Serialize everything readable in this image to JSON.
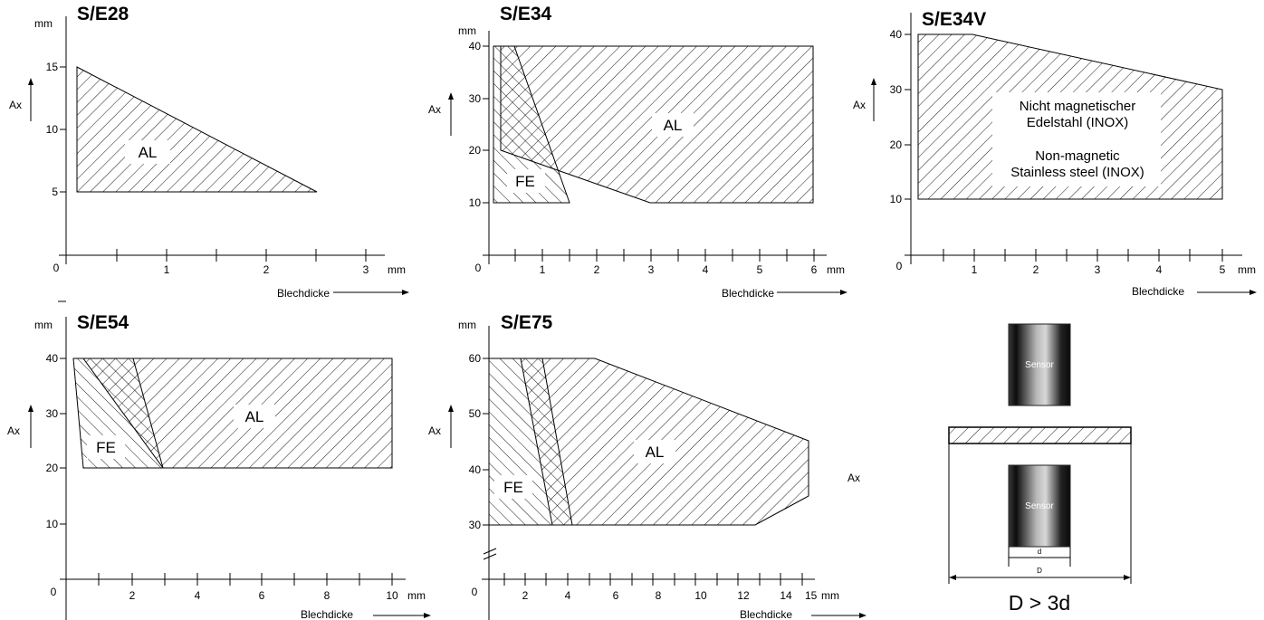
{
  "charts": [
    {
      "title": "S/E28",
      "y_unit": "mm",
      "y_label": "Ax",
      "x_unit": "mm",
      "x_label": "Blechdicke",
      "x_ticks": [
        "0",
        "1",
        "2",
        "3"
      ],
      "y_ticks": [
        "5",
        "10",
        "15"
      ],
      "regions": [
        {
          "label": "AL",
          "pattern": "forward-hatch",
          "points": [
            [
              0.1,
              15
            ],
            [
              0.1,
              5
            ],
            [
              2.5,
              5
            ]
          ]
        }
      ]
    },
    {
      "title": "S/E34",
      "y_unit": "mm",
      "y_label": "Ax",
      "x_unit": "mm",
      "x_label": "Blechdicke",
      "x_ticks": [
        "0",
        "1",
        "2",
        "3",
        "4",
        "5",
        "6"
      ],
      "y_ticks": [
        "10",
        "20",
        "30",
        "40"
      ],
      "regions": [
        {
          "label": "AL",
          "pattern": "forward-hatch",
          "points": [
            [
              0.25,
              40
            ],
            [
              6,
              40
            ],
            [
              6,
              10
            ],
            [
              3,
              10
            ],
            [
              0.25,
              20
            ]
          ]
        },
        {
          "label": "FE",
          "pattern": "back-hatch",
          "points": [
            [
              0.1,
              40
            ],
            [
              0.1,
              10
            ],
            [
              1.5,
              10
            ],
            [
              0.5,
              40
            ]
          ]
        }
      ]
    },
    {
      "title": "S/E34V",
      "y_label": "Ax",
      "x_unit": "mm",
      "x_label": "Blechdicke",
      "x_ticks": [
        "0",
        "1",
        "2",
        "3",
        "4",
        "5"
      ],
      "y_ticks": [
        "10",
        "20",
        "30",
        "40"
      ],
      "note_de": [
        "Nicht magnetischer",
        "Edelstahl (INOX)"
      ],
      "note_en": [
        "Non-magnetic",
        "Stainless steel (INOX)"
      ],
      "regions": [
        {
          "pattern": "forward-hatch",
          "points": [
            [
              0.1,
              40
            ],
            [
              1,
              40
            ],
            [
              5,
              30
            ],
            [
              5,
              10
            ],
            [
              0.1,
              10
            ]
          ]
        }
      ]
    },
    {
      "title": "S/E54",
      "y_unit": "mm",
      "y_label": "Ax",
      "x_unit": "mm",
      "x_label": "Blechdicke",
      "x_ticks": [
        "0",
        "2",
        "4",
        "6",
        "8",
        "10"
      ],
      "y_ticks": [
        "10",
        "20",
        "30",
        "40"
      ],
      "regions": [
        {
          "label": "AL",
          "pattern": "forward-hatch",
          "points": [
            [
              0.5,
              40
            ],
            [
              10,
              40
            ],
            [
              10,
              20
            ],
            [
              3,
              20
            ]
          ]
        },
        {
          "label": "FE",
          "pattern": "back-hatch",
          "points": [
            [
              0.3,
              40
            ],
            [
              1.9,
              40
            ],
            [
              3,
              20
            ],
            [
              0.5,
              20
            ]
          ]
        }
      ]
    },
    {
      "title": "S/E75",
      "y_unit": "mm",
      "y_label": "Ax",
      "right_label": "Ax",
      "x_unit": "mm",
      "x_label": "Blechdicke",
      "x_ticks": [
        "0",
        "2",
        "4",
        "6",
        "8",
        "10",
        "12",
        "14",
        "15"
      ],
      "y_ticks": [
        "30",
        "40",
        "50",
        "60"
      ],
      "regions": [
        {
          "label": "AL",
          "pattern": "forward-hatch",
          "points": [
            [
              1.5,
              60
            ],
            [
              5,
              60
            ],
            [
              15,
              45
            ],
            [
              15,
              35
            ],
            [
              12.5,
              30
            ],
            [
              4,
              30
            ]
          ]
        },
        {
          "label": "FE",
          "pattern": "back-hatch",
          "points": [
            [
              0.3,
              60
            ],
            [
              2.6,
              60
            ],
            [
              4,
              30
            ],
            [
              0.3,
              30
            ]
          ]
        }
      ]
    }
  ],
  "sensor_diagram": {
    "sensor_label": "Sensor",
    "d_label": "d",
    "D_label": "D",
    "formula": "D > 3d"
  }
}
